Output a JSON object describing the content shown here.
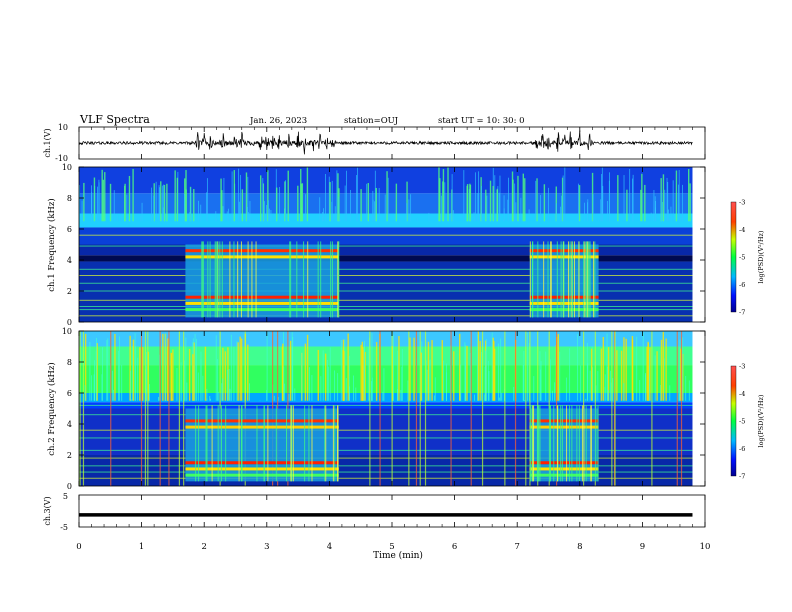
{
  "header": {
    "title": "VLF Spectra",
    "date": "Jan. 26, 2023",
    "station": "station=OUJ",
    "start": "start  UT =   10: 30: 0"
  },
  "chart_data": [
    {
      "type": "line",
      "panel": "ch1-waveform",
      "ylabel": "ch.1(V)",
      "ylim": [
        -10,
        10
      ],
      "yticks": [
        "10",
        "-10"
      ],
      "xlim": [
        0,
        10
      ],
      "bursts_min": [
        1.9,
        2.0,
        2.1,
        2.3,
        2.5,
        2.6,
        2.9,
        3.0,
        3.1,
        3.2,
        3.35,
        3.5,
        3.6,
        3.75,
        3.85,
        3.95,
        4.05,
        7.3,
        7.4,
        7.5,
        7.65,
        7.75,
        7.85,
        8.0,
        8.15
      ],
      "colors": {
        "trace": "#000000"
      }
    },
    {
      "type": "heatmap",
      "panel": "ch1-spectrogram",
      "ylabel": "ch.1 Frequency (kHz)",
      "ylim": [
        0,
        10
      ],
      "yticks": [
        "0",
        "2",
        "4",
        "6",
        "8",
        "10"
      ],
      "xlim": [
        0,
        10
      ],
      "data_end_min": 9.8,
      "active_intervals_min": [
        [
          1.7,
          4.15
        ],
        [
          7.2,
          8.3
        ]
      ],
      "colorbar": {
        "label": "log(PSD)(V²/Hz)",
        "range": [
          -7,
          -3
        ],
        "ticks": [
          "-3",
          "-4",
          "-5",
          "-6",
          "-7"
        ]
      }
    },
    {
      "type": "heatmap",
      "panel": "ch2-spectrogram",
      "ylabel": "ch.2 Frequency (kHz)",
      "ylim": [
        0,
        10
      ],
      "yticks": [
        "0",
        "2",
        "4",
        "6",
        "8",
        "10"
      ],
      "xlim": [
        0,
        10
      ],
      "data_end_min": 9.8,
      "active_intervals_min": [
        [
          1.7,
          4.15
        ],
        [
          7.2,
          8.3
        ]
      ],
      "colorbar": {
        "label": "log(PSD)(V²/Hz)",
        "range": [
          -7,
          -3
        ],
        "ticks": [
          "-3",
          "-4",
          "-5",
          "-6",
          "-7"
        ]
      }
    },
    {
      "type": "line",
      "panel": "ch3-waveform",
      "ylabel": "ch.3(V)",
      "ylim": [
        -5,
        5
      ],
      "yticks": [
        "5",
        "-5"
      ],
      "xlim": [
        0,
        10
      ],
      "values_constant": -1.2,
      "xlabel": "Time (min)",
      "xticks": [
        "0",
        "1",
        "2",
        "3",
        "4",
        "5",
        "6",
        "7",
        "8",
        "9",
        "10"
      ]
    }
  ]
}
